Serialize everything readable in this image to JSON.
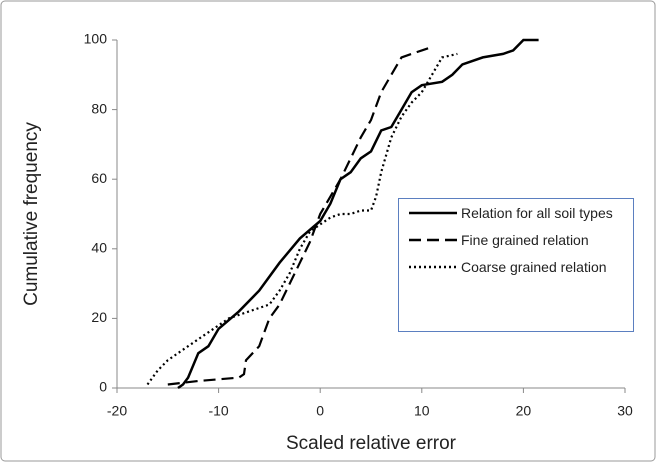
{
  "chart_data": {
    "type": "line",
    "xlabel": "Scaled relative error",
    "ylabel": "Cumulative frequency",
    "xlim": [
      -20,
      30
    ],
    "xticks": [
      -20,
      -10,
      0,
      10,
      20,
      30
    ],
    "ylim": [
      0,
      100
    ],
    "yticks": [
      0,
      20,
      40,
      60,
      80,
      100
    ],
    "grid": false,
    "legend": "right",
    "series": [
      {
        "name": "Relation for all soil types",
        "color": "#000000",
        "dash": "solid",
        "x": [
          -14,
          -13.5,
          -13,
          -12,
          -11,
          -10,
          -8,
          -6,
          -4,
          -2,
          0,
          1,
          2,
          3,
          4,
          5,
          6,
          7,
          8,
          9,
          10,
          12,
          13,
          14,
          16,
          18,
          19,
          20,
          21.5
        ],
        "values": [
          0,
          1,
          3,
          10,
          12,
          17,
          22,
          28,
          36,
          43,
          48,
          53,
          60,
          62,
          66,
          68,
          74,
          75,
          80,
          85,
          87,
          88,
          90,
          93,
          95,
          96,
          97,
          100,
          100
        ]
      },
      {
        "name": "Fine grained relation",
        "color": "#000000",
        "dash": "dashed",
        "x": [
          -15,
          -12,
          -10,
          -8,
          -7.5,
          -7.3,
          -6,
          -5,
          -4,
          -3,
          -2,
          -1,
          0,
          1,
          2,
          3,
          4,
          5,
          6,
          7,
          8,
          9,
          10,
          11
        ],
        "values": [
          1,
          2,
          2.5,
          3,
          4,
          8,
          12,
          20,
          24,
          30,
          36,
          42,
          50,
          55,
          60,
          66,
          72,
          77,
          85,
          90,
          95,
          96,
          97,
          98
        ]
      },
      {
        "name": "Coarse grained relation",
        "color": "#000000",
        "dash": "dotted",
        "x": [
          -17,
          -16,
          -15,
          -13,
          -11,
          -9,
          -7,
          -5,
          -4,
          -3,
          -2,
          -1,
          0,
          1,
          2,
          3,
          4,
          5,
          5.5,
          6,
          7,
          8,
          9,
          10,
          11,
          12,
          13.5
        ],
        "values": [
          1,
          5,
          8,
          12,
          16,
          20,
          22,
          24,
          28,
          33,
          40,
          45,
          47,
          49,
          50,
          50,
          51,
          51,
          55,
          62,
          72,
          78,
          82,
          85,
          90,
          95,
          96
        ]
      }
    ]
  }
}
